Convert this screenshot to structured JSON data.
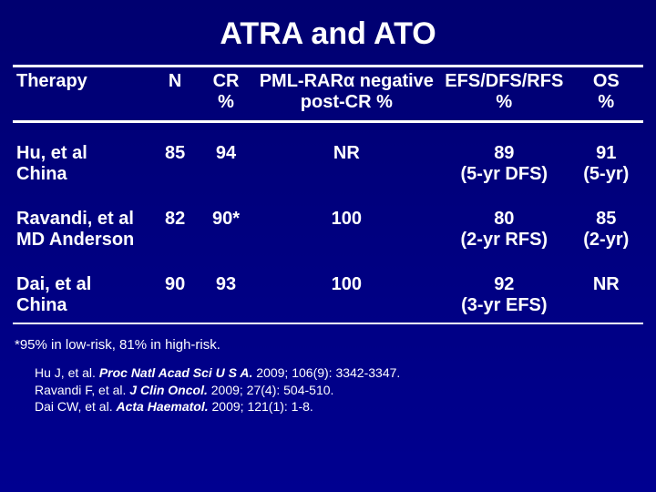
{
  "colors": {
    "background": "#000080",
    "text": "#ffffff",
    "rule": "#ffffff"
  },
  "typography": {
    "title_fontsize": 34,
    "cell_fontsize": 20,
    "footnote_fontsize": 15,
    "refs_fontsize": 14,
    "font_family": "Arial"
  },
  "title": "ATRA and ATO",
  "columns": {
    "therapy": {
      "line1": "Therapy",
      "line2": ""
    },
    "n": {
      "line1": "N",
      "line2": ""
    },
    "cr": {
      "line1": "CR",
      "line2": "%"
    },
    "pml": {
      "line1": "PML-RARα negative",
      "line2": "post-CR %"
    },
    "efs": {
      "line1": "EFS/DFS/RFS",
      "line2": "%"
    },
    "os": {
      "line1": "OS",
      "line2": "%"
    }
  },
  "rows": [
    {
      "therapy1": "Hu, et al",
      "therapy2": "China",
      "n": "85",
      "cr": "94",
      "pml": "NR",
      "efs1": "89",
      "efs2": "(5-yr DFS)",
      "os1": "91",
      "os2": "(5-yr)"
    },
    {
      "therapy1": "Ravandi, et al",
      "therapy2": "MD Anderson",
      "n": "82",
      "cr": "90*",
      "pml": "100",
      "efs1": "80",
      "efs2": "(2-yr RFS)",
      "os1": "85",
      "os2": "(2-yr)"
    },
    {
      "therapy1": "Dai, et al",
      "therapy2": "China",
      "n": "90",
      "cr": "93",
      "pml": "100",
      "efs1": "92",
      "efs2": "(3-yr EFS)",
      "os1": "NR",
      "os2": ""
    }
  ],
  "footnote": "*95% in low-risk, 81% in high-risk.",
  "refs": {
    "r1a": "Hu J, et al. ",
    "r1b": "Proc Natl Acad Sci U S A.",
    "r1c": " 2009; 106(9): 3342-3347.",
    "r2a": "Ravandi F, et al. ",
    "r2b": "J Clin Oncol.",
    "r2c": " 2009; 27(4): 504-510.",
    "r3a": "Dai CW, et al. ",
    "r3b": "Acta Haematol.",
    "r3c": " 2009; 121(1): 1-8."
  }
}
